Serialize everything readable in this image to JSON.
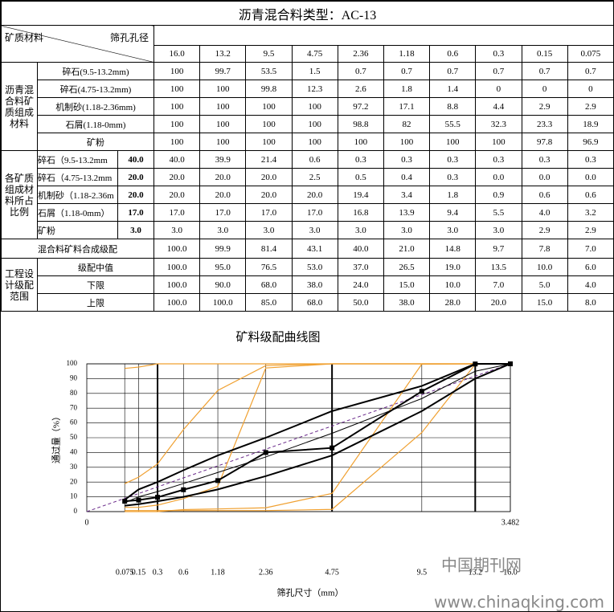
{
  "title": "沥青混合料类型：AC-13",
  "header": {
    "material": "矿质材料",
    "sieve": "筛孔孔径",
    "sieves": [
      "16.0",
      "13.2",
      "9.5",
      "4.75",
      "2.36",
      "1.18",
      "0.6",
      "0.3",
      "0.15",
      "0.075"
    ]
  },
  "gradations": {
    "label": "沥青混合料矿质组成材料",
    "color": "#f0a030",
    "rows": [
      {
        "name": "碎石(9.5-13.2mm)",
        "values": [
          "100",
          "99.7",
          "53.5",
          "1.5",
          "0.7",
          "0.7",
          "0.7",
          "0.7",
          "0.7",
          "0.7"
        ]
      },
      {
        "name": "碎石(4.75-13.2mm)",
        "values": [
          "100",
          "100",
          "99.8",
          "12.3",
          "2.6",
          "1.8",
          "1.4",
          "0",
          "0",
          "0"
        ]
      },
      {
        "name": "机制砂(1.18-2.36mm)",
        "values": [
          "100",
          "100",
          "100",
          "100",
          "97.2",
          "17.1",
          "8.8",
          "4.4",
          "2.9",
          "2.9"
        ]
      },
      {
        "name": "石屑(1.18-0mm)",
        "values": [
          "100",
          "100",
          "100",
          "100",
          "98.8",
          "82",
          "55.5",
          "32.3",
          "23.3",
          "18.9"
        ]
      },
      {
        "name": "矿粉",
        "values": [
          "100",
          "100",
          "100",
          "100",
          "100",
          "100",
          "100",
          "100",
          "97.8",
          "96.9"
        ]
      }
    ]
  },
  "proportions": {
    "label": "各矿质组成材料所占比例",
    "rows": [
      {
        "name": "碎石（9.5-13.2mm",
        "ratio": "40.0",
        "values": [
          "40.0",
          "39.9",
          "21.4",
          "0.6",
          "0.3",
          "0.3",
          "0.3",
          "0.3",
          "0.3",
          "0.3"
        ]
      },
      {
        "name": "碎石（4.75-13.2mm",
        "ratio": "20.0",
        "values": [
          "20.0",
          "20.0",
          "20.0",
          "2.5",
          "0.5",
          "0.4",
          "0.3",
          "0.0",
          "0.0",
          "0.0"
        ]
      },
      {
        "name": "机制砂（1.18-2.36m",
        "ratio": "20.0",
        "values": [
          "20.0",
          "20.0",
          "20.0",
          "20.0",
          "19.4",
          "3.4",
          "1.8",
          "0.9",
          "0.6",
          "0.6"
        ]
      },
      {
        "name": "石屑（1.18-0mm）",
        "ratio": "17.0",
        "values": [
          "17.0",
          "17.0",
          "17.0",
          "17.0",
          "16.8",
          "13.9",
          "9.4",
          "5.5",
          "4.0",
          "3.2"
        ]
      },
      {
        "name": "矿粉",
        "ratio": "3.0",
        "values": [
          "3.0",
          "3.0",
          "3.0",
          "3.0",
          "3.0",
          "3.0",
          "3.0",
          "3.0",
          "2.9",
          "2.9"
        ]
      }
    ]
  },
  "mix": {
    "label": "混合料矿料合成级配",
    "color": "#000000",
    "marker": "square",
    "values": [
      "100.0",
      "99.9",
      "81.4",
      "43.1",
      "40.0",
      "21.0",
      "14.8",
      "9.7",
      "7.8",
      "7.0"
    ]
  },
  "design": {
    "label": "工程设计级配范围",
    "color": "#000000",
    "rows": [
      {
        "name": "级配中值",
        "values": [
          "100.0",
          "95.0",
          "76.5",
          "53.0",
          "37.0",
          "26.5",
          "19.0",
          "13.5",
          "10.0",
          "6.0"
        ]
      },
      {
        "name": "下限",
        "values": [
          "100.0",
          "90.0",
          "68.0",
          "38.0",
          "24.0",
          "15.0",
          "10.0",
          "7.0",
          "5.0",
          "4.0"
        ]
      },
      {
        "name": "上限",
        "values": [
          "100.0",
          "100.0",
          "85.0",
          "68.0",
          "50.0",
          "38.0",
          "28.0",
          "20.0",
          "15.0",
          "8.0"
        ]
      }
    ]
  },
  "chart": {
    "title": "矿料级配曲线图",
    "y_label": "通过量（%）",
    "x_label": "筛孔尺寸（mm）",
    "ylim": [
      0,
      100
    ],
    "yticks": [
      0,
      10,
      20,
      30,
      40,
      50,
      60,
      70,
      80,
      90,
      100
    ],
    "xlim": [
      0,
      3.482
    ],
    "xticks": [
      0,
      3.482
    ],
    "x_scale": "power",
    "x_power": 0.45,
    "grid": true
  },
  "watermark": [
    "中国期刊网",
    "www.chinaqking.com"
  ]
}
